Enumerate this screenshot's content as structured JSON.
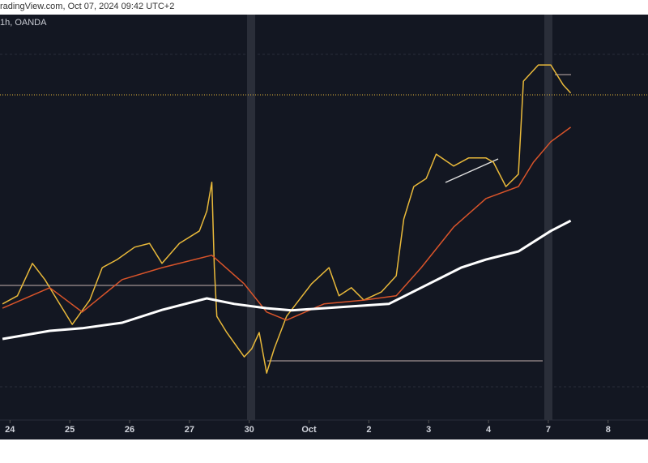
{
  "chart_data": {
    "type": "line",
    "title": "radingView.com, Oct 07, 2024 09:42 UTC+2",
    "subtitle": "1h, OANDA",
    "xlim": [
      -4,
      256
    ],
    "ylim": [
      140.8,
      150.3
    ],
    "xticks": [
      {
        "value": 0,
        "label": "24"
      },
      {
        "value": 24,
        "label": "25"
      },
      {
        "value": 48,
        "label": "26"
      },
      {
        "value": 72,
        "label": "27"
      },
      {
        "value": 96,
        "label": "30"
      },
      {
        "value": 120,
        "label": "Oct"
      },
      {
        "value": 144,
        "label": "2"
      },
      {
        "value": 168,
        "label": "3"
      },
      {
        "value": 192,
        "label": "4"
      },
      {
        "value": 216,
        "label": "7"
      },
      {
        "value": 240,
        "label": "8"
      }
    ],
    "series": [
      {
        "color": "#e9b93a",
        "x": [
          -3,
          3,
          9,
          14,
          19,
          25,
          32,
          37,
          43,
          50,
          56,
          61,
          68,
          76,
          79,
          81,
          82,
          83,
          87,
          94,
          97,
          100,
          103,
          106,
          111,
          116,
          121,
          128,
          132,
          137,
          142,
          149,
          155,
          158,
          162,
          167,
          171,
          178,
          184,
          191,
          194,
          199,
          204,
          206,
          209,
          212,
          217,
          222,
          225
        ],
        "values": [
          143.52,
          143.71,
          144.47,
          144.09,
          143.61,
          143.04,
          143.61,
          144.37,
          144.56,
          144.85,
          144.94,
          144.47,
          144.94,
          145.23,
          145.7,
          146.37,
          144.37,
          143.23,
          142.85,
          142.28,
          142.47,
          142.85,
          141.9,
          142.47,
          143.23,
          143.61,
          143.99,
          144.37,
          143.71,
          143.9,
          143.61,
          143.8,
          144.18,
          145.51,
          146.27,
          146.46,
          147.03,
          146.75,
          146.94,
          146.94,
          146.84,
          146.27,
          146.56,
          148.74,
          148.93,
          149.12,
          149.12,
          148.65,
          148.46
        ]
      },
      {
        "color": "#d9542a",
        "x": [
          -3,
          16,
          29,
          45,
          61,
          74,
          81,
          94,
          103,
          111,
          126,
          142,
          155,
          165,
          178,
          191,
          204,
          210,
          217,
          225
        ],
        "values": [
          143.42,
          143.9,
          143.33,
          144.09,
          144.37,
          144.56,
          144.66,
          143.99,
          143.33,
          143.14,
          143.52,
          143.61,
          143.71,
          144.37,
          145.32,
          145.99,
          146.27,
          146.84,
          147.32,
          147.66
        ]
      },
      {
        "color": "#ffffff",
        "x": [
          -3,
          16,
          29,
          45,
          61,
          79,
          90,
          103,
          113,
          126,
          152,
          165,
          181,
          191,
          204,
          217,
          225
        ],
        "values": [
          142.7,
          142.89,
          142.95,
          143.08,
          143.38,
          143.65,
          143.52,
          143.42,
          143.37,
          143.42,
          143.52,
          143.9,
          144.37,
          144.56,
          144.75,
          145.23,
          145.47
        ]
      }
    ]
  }
}
